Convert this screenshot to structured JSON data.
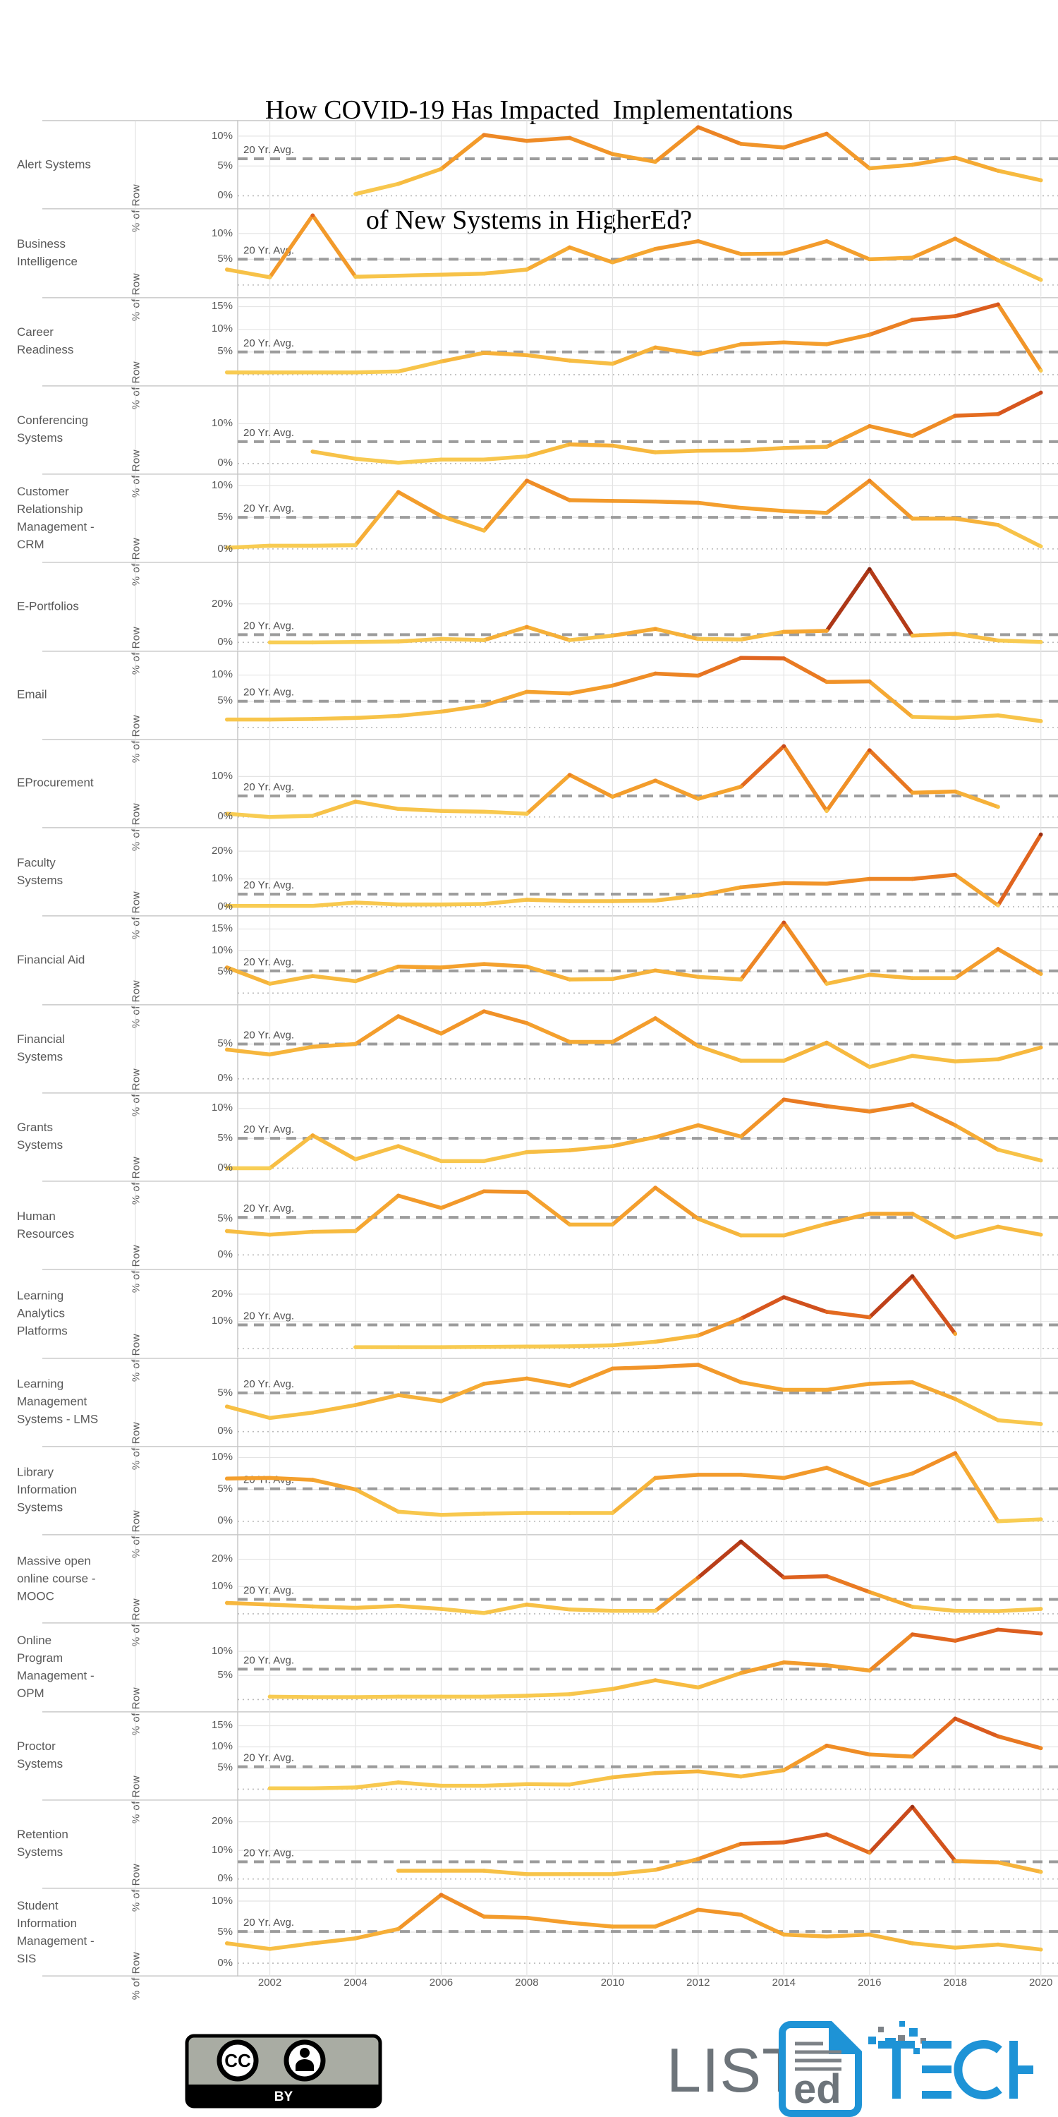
{
  "title": {
    "line1": "How COVID-19 Has Impacted  Implementations",
    "line2": "of New Systems in HigherEd?"
  },
  "y_axis_unit_label": "% of Row",
  "avg_line_label": "20 Yr. Avg.",
  "x_tick_labels": [
    "2002",
    "2004",
    "2006",
    "2008",
    "2010",
    "2012",
    "2014",
    "2016",
    "2018",
    "2020"
  ],
  "footer": {
    "cc_badge_text": "BY",
    "cc_icon_text": "CC",
    "logo": {
      "list": "LIST",
      "ed": "ed",
      "tech_t": "T",
      "tech_c": "C",
      "tech_h": "H"
    }
  },
  "colors": {
    "row_label": "#595959",
    "grid": "#e4e4e4",
    "zero_dotted": "#b9b9b9",
    "avg_dash": "#9c9c9c",
    "separator": "#c9c9c9",
    "axis_edge": "#c4c4c4",
    "title_text": "#000000",
    "logo_blue": "#1e93d6",
    "logo_gray": "#6d747a",
    "badge_gray": "#a9aca3",
    "value_color_stops": [
      [
        0,
        "#F8CE55"
      ],
      [
        3,
        "#F7BD42"
      ],
      [
        6,
        "#F5A42F"
      ],
      [
        9,
        "#F09027"
      ],
      [
        12,
        "#E56E20"
      ],
      [
        15,
        "#D8571E"
      ],
      [
        18,
        "#C4451B"
      ],
      [
        22,
        "#AC3717"
      ],
      [
        27,
        "#962D13"
      ],
      [
        40,
        "#7D230E"
      ]
    ]
  },
  "chart_data": {
    "type": "line",
    "x": [
      2001,
      2002,
      2003,
      2004,
      2005,
      2006,
      2007,
      2008,
      2009,
      2010,
      2011,
      2012,
      2013,
      2014,
      2015,
      2016,
      2017,
      2018,
      2019,
      2020
    ],
    "x_range": [
      2001.25,
      2020.4
    ],
    "x_gridline_years": [
      2002,
      2004,
      2006,
      2008,
      2010,
      2012,
      2014,
      2016,
      2018,
      2020
    ],
    "ylabel": "% of Row",
    "legend": "none",
    "grid": "on",
    "rows": [
      {
        "label": "Alert Systems",
        "label_lines": [
          "Alert Systems"
        ],
        "ticks": [
          10,
          5,
          0
        ],
        "avg": 6.2,
        "values": [
          null,
          null,
          null,
          0.3,
          2,
          4.5,
          10.2,
          9.2,
          9.7,
          7,
          5.7,
          11.5,
          8.7,
          8.1,
          10.4,
          4.6,
          5.2,
          6.4,
          4.2,
          2.6
        ]
      },
      {
        "label": "Business Intelligence",
        "label_lines": [
          "Business",
          "Intelligence"
        ],
        "ticks": [
          10,
          5
        ],
        "avg": 5,
        "values": [
          3,
          1.5,
          13.5,
          1.6,
          1.8,
          2,
          2.2,
          3,
          7.3,
          4.4,
          7,
          8.5,
          6,
          6.1,
          8.5,
          5,
          5.3,
          9,
          4.8,
          1
        ]
      },
      {
        "label": "Career Readiness",
        "label_lines": [
          "Career",
          "Readiness"
        ],
        "ticks": [
          15,
          10,
          5
        ],
        "avg": 5,
        "values": [
          0.5,
          0.5,
          0.5,
          0.5,
          0.7,
          2.9,
          4.8,
          4.3,
          3.1,
          2.4,
          6,
          4.5,
          6.7,
          7.1,
          6.7,
          8.8,
          12.1,
          12.9,
          15.5,
          0.9
        ]
      },
      {
        "label": "Conferencing Systems",
        "label_lines": [
          "Conferencing",
          "Systems"
        ],
        "ticks": [
          10,
          0
        ],
        "avg": 5.5,
        "values": [
          null,
          null,
          3,
          1.2,
          0.2,
          1,
          1,
          1.8,
          4.8,
          4.5,
          2.8,
          3.2,
          3.3,
          3.9,
          4.2,
          9.4,
          6.9,
          12,
          12.4,
          17.8
        ]
      },
      {
        "label": "Customer Relationship Management - CRM",
        "label_lines": [
          "Customer",
          "Relationship",
          "Management -",
          "CRM"
        ],
        "ticks": [
          10,
          5,
          0
        ],
        "avg": 5,
        "values": [
          0.2,
          0.5,
          0.5,
          0.6,
          9,
          5.2,
          2.9,
          10.8,
          7.7,
          7.6,
          7.5,
          7.3,
          6.5,
          6,
          5.7,
          10.8,
          4.8,
          4.8,
          3.8,
          0.4
        ]
      },
      {
        "label": "E-Portfolios",
        "label_lines": [
          "E-Portfolios"
        ],
        "ticks": [
          20,
          0
        ],
        "avg": 4,
        "values": [
          null,
          0,
          0,
          0.2,
          0.5,
          1.8,
          1.2,
          8,
          1.2,
          3.5,
          7,
          1.8,
          1.5,
          5.5,
          6,
          38,
          3.5,
          4.5,
          1,
          0.2
        ]
      },
      {
        "label": "Email",
        "label_lines": [
          "Email"
        ],
        "ticks": [
          10,
          5
        ],
        "avg": 5,
        "values": [
          1.5,
          1.5,
          1.6,
          1.8,
          2.2,
          3,
          4.2,
          6.8,
          6.5,
          8,
          10.3,
          9.9,
          13.3,
          13.2,
          8.7,
          8.8,
          2,
          1.8,
          2.3,
          1.2
        ]
      },
      {
        "label": "EProcurement",
        "label_lines": [
          "EProcurement"
        ],
        "ticks": [
          10,
          0
        ],
        "avg": 5.2,
        "values": [
          0.8,
          0,
          0.3,
          3.8,
          2,
          1.5,
          1.3,
          0.8,
          10.4,
          5,
          9,
          4.5,
          7.5,
          17.5,
          1.5,
          16.5,
          6,
          6.3,
          2.5,
          null
        ]
      },
      {
        "label": "Faculty Systems",
        "label_lines": [
          "Faculty",
          "Systems"
        ],
        "ticks": [
          20,
          10,
          0
        ],
        "avg": 4.5,
        "values": [
          0.3,
          0.3,
          0.3,
          1.5,
          0.8,
          0.8,
          1,
          2.5,
          2,
          2,
          2.2,
          4,
          7,
          8.5,
          8.3,
          10,
          10,
          11.5,
          0.5,
          26
        ]
      },
      {
        "label": "Financial Aid",
        "label_lines": [
          "Financial Aid"
        ],
        "ticks": [
          15,
          10,
          5
        ],
        "avg": 5.2,
        "values": [
          6,
          2.2,
          4,
          2.8,
          6.2,
          6,
          6.8,
          6.2,
          3.2,
          3.3,
          5.3,
          3.8,
          3.2,
          16.5,
          2.2,
          4.3,
          3.5,
          3.5,
          10.3,
          4.5
        ]
      },
      {
        "label": "Financial Systems",
        "label_lines": [
          "Financial",
          "Systems"
        ],
        "ticks": [
          5,
          0
        ],
        "avg": 5,
        "values": [
          4.2,
          3.5,
          4.6,
          5,
          9,
          6.5,
          9.7,
          8,
          5.3,
          5.3,
          8.7,
          4.7,
          2.6,
          2.6,
          5.2,
          1.7,
          3.3,
          2.5,
          2.8,
          4.5
        ]
      },
      {
        "label": "Grants Systems",
        "label_lines": [
          "Grants",
          "Systems"
        ],
        "ticks": [
          10,
          5,
          0
        ],
        "avg": 5,
        "values": [
          0,
          0,
          5.5,
          1.5,
          3.7,
          1.2,
          1.2,
          2.7,
          3,
          3.7,
          5.2,
          7.2,
          5.3,
          11.5,
          10.4,
          9.5,
          10.7,
          7.2,
          3.1,
          1.3
        ]
      },
      {
        "label": "Human Resources",
        "label_lines": [
          "Human",
          "Resources"
        ],
        "ticks": [
          5,
          0
        ],
        "avg": 5.2,
        "values": [
          3.3,
          2.8,
          3.2,
          3.3,
          8.2,
          6.5,
          8.8,
          8.7,
          4.2,
          4.2,
          9.3,
          5,
          2.7,
          2.7,
          4.3,
          5.7,
          5.7,
          2.4,
          3.9,
          2.8
        ]
      },
      {
        "label": "Learning Analytics Platforms",
        "label_lines": [
          "Learning",
          "Analytics",
          "Platforms"
        ],
        "ticks": [
          20,
          10
        ],
        "avg": 8.7,
        "values": [
          null,
          null,
          null,
          0.5,
          0.5,
          0.5,
          0.6,
          0.7,
          0.8,
          1.2,
          2.5,
          4.8,
          11,
          18.9,
          13.5,
          11.5,
          26.6,
          5.4,
          null,
          null
        ]
      },
      {
        "label": "Learning Management Systems - LMS",
        "label_lines": [
          "Learning",
          "Management",
          "Systems - LMS"
        ],
        "ticks": [
          5,
          0
        ],
        "avg": 5.1,
        "values": [
          3.3,
          1.8,
          2.5,
          3.5,
          4.8,
          4,
          6.3,
          7,
          6,
          8.3,
          8.5,
          8.8,
          6.5,
          5.5,
          5.5,
          6.3,
          6.5,
          4.3,
          1.5,
          1
        ]
      },
      {
        "label": "Library Information Systems",
        "label_lines": [
          "Library",
          "Information",
          "Systems"
        ],
        "ticks": [
          10,
          5,
          0
        ],
        "avg": 5.1,
        "values": [
          6.7,
          6.8,
          6.5,
          5,
          1.5,
          1,
          1.2,
          1.3,
          1.3,
          1.3,
          6.8,
          7.3,
          7.3,
          6.8,
          8.4,
          5.7,
          7.5,
          10.7,
          0,
          0.3
        ]
      },
      {
        "label": "Massive open online course - MOOC",
        "label_lines": [
          "Massive open",
          "online course -",
          "MOOC"
        ],
        "ticks": [
          20,
          10
        ],
        "avg": 5.3,
        "values": [
          4,
          3.4,
          2.7,
          2.2,
          2.9,
          1.8,
          0.3,
          3.4,
          1.6,
          1.1,
          1.1,
          13.3,
          26.5,
          13.3,
          13.8,
          8,
          2.6,
          1.1,
          1,
          1.8
        ]
      },
      {
        "label": "Online Program Management - OPM",
        "label_lines": [
          "Online",
          "Program",
          "Management -",
          "OPM"
        ],
        "ticks": [
          10,
          5
        ],
        "avg": 6.3,
        "values": [
          null,
          0.6,
          0.5,
          0.5,
          0.6,
          0.6,
          0.6,
          0.8,
          1.1,
          2.2,
          4,
          2.5,
          5.5,
          7.7,
          7.1,
          6,
          13.5,
          12.2,
          14.5,
          13.7
        ]
      },
      {
        "label": "Proctor Systems",
        "label_lines": [
          "Proctor",
          "Systems"
        ],
        "ticks": [
          15,
          10,
          5
        ],
        "avg": 5.3,
        "values": [
          null,
          0.2,
          0.2,
          0.4,
          1.6,
          0.8,
          0.8,
          1.2,
          1.1,
          2.8,
          3.8,
          4.2,
          3,
          4.5,
          10.3,
          8.2,
          7.7,
          16.7,
          12.5,
          9.7
        ]
      },
      {
        "label": "Retention Systems",
        "label_lines": [
          "Retention",
          "Systems"
        ],
        "ticks": [
          20,
          10,
          0
        ],
        "avg": 6,
        "values": [
          null,
          null,
          null,
          null,
          2.9,
          2.9,
          2.9,
          1.7,
          1.7,
          1.7,
          3.2,
          7,
          12.3,
          12.8,
          15.6,
          9.2,
          25.2,
          6.3,
          5.8,
          2.5
        ]
      },
      {
        "label": "Student Information Management - SIS",
        "label_lines": [
          "Student",
          "Information",
          "Management -",
          "SIS"
        ],
        "ticks": [
          10,
          5,
          0
        ],
        "avg": 5.1,
        "values": [
          3.2,
          2.3,
          3.2,
          4,
          5.5,
          11,
          7.5,
          7.3,
          6.5,
          5.9,
          5.9,
          8.6,
          7.8,
          4.6,
          4.3,
          4.6,
          3.2,
          2.5,
          3,
          2.2
        ]
      }
    ]
  }
}
